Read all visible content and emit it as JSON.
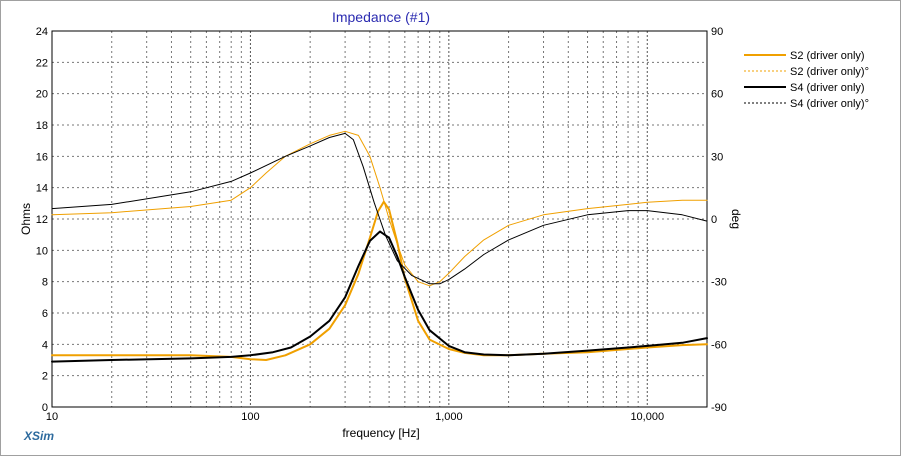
{
  "brand": "XSim",
  "chart_data": {
    "type": "line",
    "title": "Impedance (#1)",
    "xlabel": "frequency [Hz]",
    "ylabel": "Ohms",
    "y2label": "deg",
    "xscale": "log",
    "xlim": [
      10,
      20000
    ],
    "ylim": [
      0,
      24
    ],
    "y2lim": [
      -90,
      90
    ],
    "x_tick_labels": [
      {
        "value": 10,
        "label": "10"
      },
      {
        "value": 100,
        "label": "100"
      },
      {
        "value": 1000,
        "label": "1,000"
      },
      {
        "value": 10000,
        "label": "10,000"
      }
    ],
    "y_ticks": [
      0,
      2,
      4,
      6,
      8,
      10,
      12,
      14,
      16,
      18,
      20,
      22,
      24
    ],
    "y2_ticks": [
      -90,
      -60,
      -30,
      0,
      30,
      60,
      90
    ],
    "grid": true,
    "legend_position": "right",
    "series": [
      {
        "name": "S2 (driver only)",
        "axis": "left",
        "color": "#f0a000",
        "style": "solid",
        "points": [
          [
            10,
            3.3
          ],
          [
            20,
            3.3
          ],
          [
            50,
            3.3
          ],
          [
            80,
            3.2
          ],
          [
            100,
            3.05
          ],
          [
            120,
            3.0
          ],
          [
            150,
            3.3
          ],
          [
            200,
            4.0
          ],
          [
            250,
            5.0
          ],
          [
            300,
            6.5
          ],
          [
            350,
            8.5
          ],
          [
            400,
            10.8
          ],
          [
            440,
            12.5
          ],
          [
            470,
            13.1
          ],
          [
            500,
            12.6
          ],
          [
            550,
            10.5
          ],
          [
            600,
            8.2
          ],
          [
            700,
            5.5
          ],
          [
            800,
            4.3
          ],
          [
            1000,
            3.7
          ],
          [
            1200,
            3.45
          ],
          [
            1500,
            3.3
          ],
          [
            2000,
            3.3
          ],
          [
            3000,
            3.4
          ],
          [
            5000,
            3.5
          ],
          [
            8000,
            3.7
          ],
          [
            10000,
            3.8
          ],
          [
            15000,
            3.95
          ],
          [
            20000,
            4.0
          ]
        ]
      },
      {
        "name": "S2 (driver only)°",
        "axis": "right",
        "color": "#f0a000",
        "style": "dashed",
        "points": [
          [
            10,
            2
          ],
          [
            20,
            3
          ],
          [
            50,
            6
          ],
          [
            80,
            9
          ],
          [
            100,
            15
          ],
          [
            120,
            22
          ],
          [
            150,
            30
          ],
          [
            200,
            36
          ],
          [
            250,
            40
          ],
          [
            300,
            42
          ],
          [
            350,
            40
          ],
          [
            400,
            30
          ],
          [
            450,
            15
          ],
          [
            500,
            0
          ],
          [
            550,
            -12
          ],
          [
            600,
            -22
          ],
          [
            700,
            -30
          ],
          [
            800,
            -32
          ],
          [
            900,
            -30
          ],
          [
            1000,
            -26
          ],
          [
            1200,
            -18
          ],
          [
            1500,
            -10
          ],
          [
            2000,
            -3
          ],
          [
            3000,
            2
          ],
          [
            5000,
            5
          ],
          [
            8000,
            7
          ],
          [
            10000,
            8
          ],
          [
            15000,
            9
          ],
          [
            20000,
            9
          ]
        ]
      },
      {
        "name": "S4 (driver only)",
        "axis": "left",
        "color": "#000000",
        "style": "solid",
        "points": [
          [
            10,
            2.9
          ],
          [
            20,
            3.0
          ],
          [
            50,
            3.1
          ],
          [
            80,
            3.2
          ],
          [
            100,
            3.3
          ],
          [
            130,
            3.5
          ],
          [
            160,
            3.8
          ],
          [
            200,
            4.5
          ],
          [
            250,
            5.5
          ],
          [
            300,
            7.0
          ],
          [
            350,
            9.0
          ],
          [
            400,
            10.6
          ],
          [
            450,
            11.2
          ],
          [
            500,
            10.8
          ],
          [
            550,
            9.6
          ],
          [
            600,
            8.3
          ],
          [
            700,
            6.2
          ],
          [
            800,
            4.9
          ],
          [
            1000,
            3.9
          ],
          [
            1200,
            3.5
          ],
          [
            1500,
            3.35
          ],
          [
            2000,
            3.3
          ],
          [
            3000,
            3.4
          ],
          [
            5000,
            3.6
          ],
          [
            8000,
            3.8
          ],
          [
            10000,
            3.9
          ],
          [
            15000,
            4.1
          ],
          [
            20000,
            4.4
          ]
        ]
      },
      {
        "name": "S4 (driver only)°",
        "axis": "right",
        "color": "#000000",
        "style": "dashed",
        "points": [
          [
            10,
            5
          ],
          [
            20,
            7
          ],
          [
            50,
            13
          ],
          [
            80,
            18
          ],
          [
            100,
            22
          ],
          [
            150,
            30
          ],
          [
            200,
            35
          ],
          [
            250,
            39
          ],
          [
            300,
            41
          ],
          [
            330,
            38
          ],
          [
            370,
            25
          ],
          [
            420,
            8
          ],
          [
            480,
            -8
          ],
          [
            550,
            -20
          ],
          [
            650,
            -27
          ],
          [
            800,
            -31
          ],
          [
            900,
            -31
          ],
          [
            1000,
            -29
          ],
          [
            1200,
            -24
          ],
          [
            1500,
            -17
          ],
          [
            2000,
            -10
          ],
          [
            3000,
            -3
          ],
          [
            5000,
            2
          ],
          [
            8000,
            4
          ],
          [
            10000,
            4
          ],
          [
            15000,
            2
          ],
          [
            20000,
            -1
          ]
        ]
      }
    ]
  }
}
